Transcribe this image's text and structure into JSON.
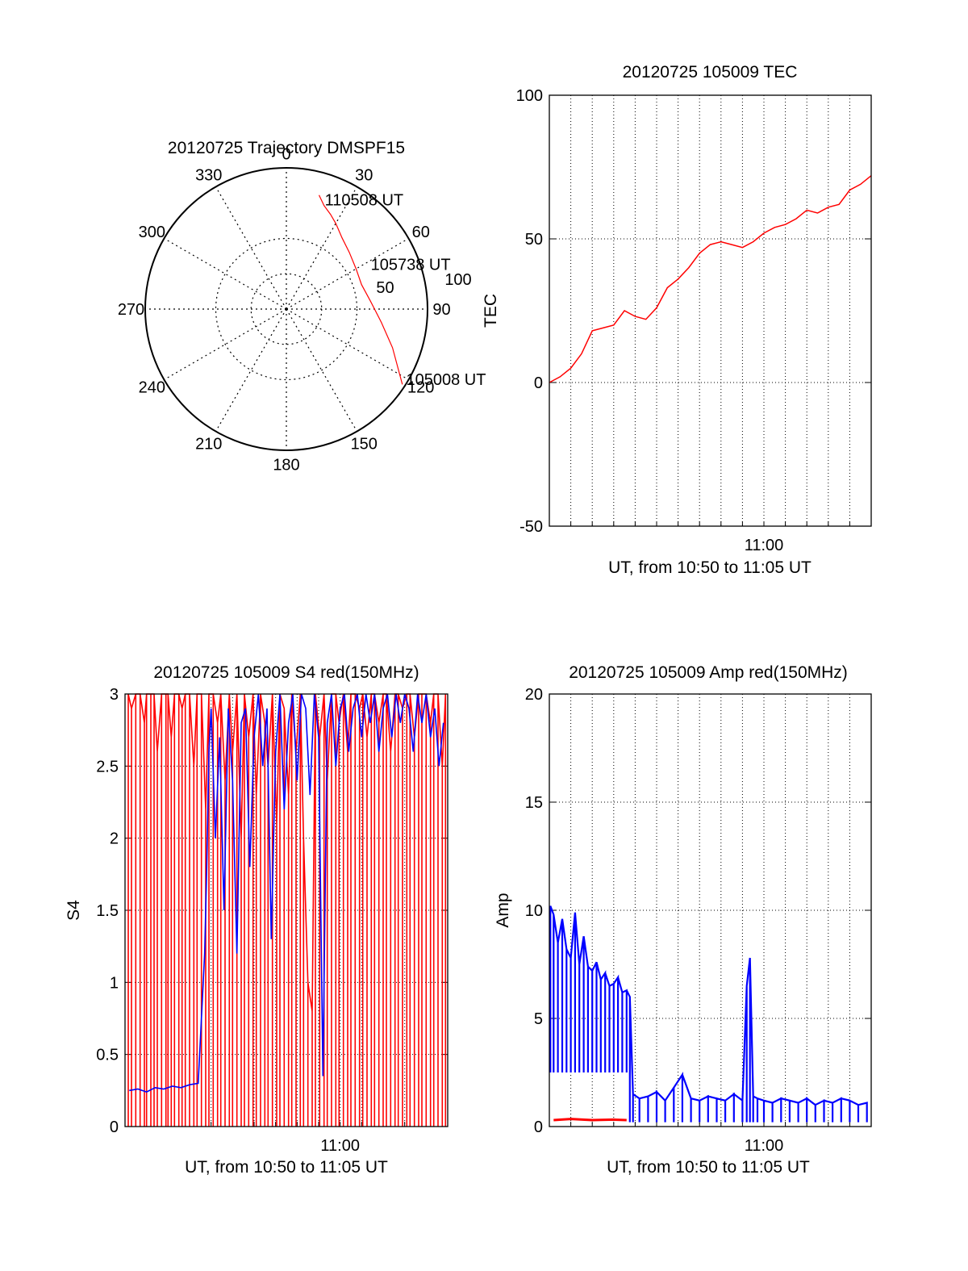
{
  "colors": {
    "red": "#ff0000",
    "blue": "#0000ff",
    "axis": "#000000",
    "grid": "#000000"
  },
  "chart_data": [
    {
      "id": "trajectory",
      "type": "polar",
      "title": "20120725 Trajectory DMSPF15",
      "azimuth_ticks": [
        "0",
        "30",
        "60",
        "90",
        "120",
        "150",
        "180",
        "210",
        "240",
        "270",
        "300",
        "330"
      ],
      "radius_range": [
        0,
        100
      ],
      "radius_labels": [
        "50",
        "100"
      ],
      "track": {
        "color": "#ff0000",
        "points": [
          [
            123,
            98
          ],
          [
            110,
            80
          ],
          [
            98,
            68
          ],
          [
            85,
            60
          ],
          [
            72,
            56
          ],
          [
            60,
            57
          ],
          [
            48,
            60
          ],
          [
            38,
            64
          ],
          [
            30,
            70
          ],
          [
            25,
            74
          ],
          [
            20,
            78
          ],
          [
            16,
            84
          ]
        ]
      },
      "annotations": [
        {
          "text": "110508 UT",
          "azimuth": 20,
          "radius": 83
        },
        {
          "text": "105738 UT",
          "azimuth": 62,
          "radius": 69
        },
        {
          "text": "105008 UT",
          "azimuth": 120,
          "radius": 98
        }
      ]
    },
    {
      "id": "tec",
      "type": "line",
      "title": "20120725 105009 TEC",
      "ylabel": "TEC",
      "xlabel": "UT, from 10:50 to 11:05 UT",
      "x_tick_labels": [
        "11:00"
      ],
      "y_tick_labels": [
        "-50",
        "0",
        "50",
        "100"
      ],
      "xlim": [
        0,
        15
      ],
      "ylim": [
        -50,
        100
      ],
      "series": [
        {
          "color": "#ff0000",
          "x": [
            0,
            0.5,
            1,
            1.5,
            2,
            2.5,
            3,
            3.5,
            4,
            4.5,
            5,
            5.5,
            6,
            6.5,
            7,
            7.5,
            8,
            8.5,
            9,
            9.5,
            10,
            10.5,
            11,
            11.5,
            12,
            12.5,
            13,
            13.5,
            14,
            14.5,
            15
          ],
          "y": [
            0,
            2,
            5,
            10,
            18,
            19,
            20,
            25,
            23,
            22,
            26,
            33,
            36,
            40,
            45,
            48,
            49,
            48,
            47,
            49,
            52,
            54,
            55,
            57,
            60,
            59,
            61,
            62,
            67,
            69,
            72
          ]
        }
      ]
    },
    {
      "id": "s4",
      "type": "line",
      "title": "20120725 105009 S4 red(150MHz)",
      "ylabel": "S4",
      "xlabel": "UT, from 10:50 to 11:05 UT",
      "x_tick_labels": [
        "11:00"
      ],
      "y_tick_labels": [
        "0",
        "0.5",
        "1",
        "1.5",
        "2",
        "2.5",
        "3"
      ],
      "xlim": [
        0,
        15
      ],
      "ylim": [
        0,
        3
      ],
      "series": [
        {
          "color": "#ff0000",
          "x": [
            0.15,
            0.3,
            0.5,
            0.7,
            0.9,
            1.0,
            1.2,
            1.35,
            1.5,
            1.7,
            1.9,
            2.0,
            2.15,
            2.3,
            2.5,
            2.65,
            2.8,
            3.0,
            3.2,
            3.35,
            3.55,
            3.75,
            3.9,
            4.1,
            4.3,
            4.45,
            4.65,
            4.85,
            5.0,
            5.2,
            5.4,
            5.55,
            5.75,
            5.95,
            6.1,
            6.3,
            6.5,
            6.65,
            6.85,
            7.05,
            7.2,
            7.4,
            7.6,
            7.75,
            7.95,
            8.15,
            8.3,
            8.5,
            8.7,
            8.85,
            9.05,
            9.25,
            9.4,
            9.6,
            9.8,
            9.95,
            10.15,
            10.35,
            10.5,
            10.7,
            10.9,
            11.05,
            11.25,
            11.45,
            11.6,
            11.8,
            12.0,
            12.15,
            12.35,
            12.55,
            12.7,
            12.9,
            13.1,
            13.25,
            13.45,
            13.65,
            13.8,
            14.0,
            14.2,
            14.35,
            14.55,
            14.75,
            14.9
          ],
          "y": [
            3,
            2.9,
            3,
            3,
            2.8,
            3,
            3,
            3,
            2.6,
            3,
            3,
            3,
            2.7,
            3,
            3,
            2.9,
            3,
            3,
            2.5,
            3,
            3,
            2.2,
            3,
            3,
            2.8,
            3,
            2.4,
            3,
            2.6,
            3,
            2.0,
            3,
            2.7,
            3,
            2.3,
            3,
            2.8,
            2.5,
            3,
            2.1,
            3,
            2.9,
            2.3,
            3,
            2.6,
            3,
            2.0,
            1.0,
            0.8,
            3,
            2.7,
            3,
            2.4,
            3,
            3,
            2.8,
            3,
            2.6,
            3,
            3,
            2.9,
            3,
            2.7,
            3,
            3,
            2.8,
            3,
            3,
            2.6,
            3,
            3,
            2.9,
            3,
            3,
            2.7,
            3,
            3,
            3,
            2.8,
            3,
            3,
            2.5,
            3
          ]
        },
        {
          "color": "#0000ff",
          "x": [
            0.2,
            0.6,
            1.0,
            1.4,
            1.8,
            2.2,
            2.6,
            3.0,
            3.4,
            3.7,
            3.8,
            3.9,
            4.0,
            4.2,
            4.4,
            4.6,
            4.8,
            5.0,
            5.2,
            5.4,
            5.6,
            5.8,
            6.0,
            6.2,
            6.4,
            6.6,
            6.8,
            7.0,
            7.2,
            7.4,
            7.6,
            7.8,
            8.0,
            8.2,
            8.4,
            8.6,
            8.8,
            9.0,
            9.2,
            9.4,
            9.6,
            9.8,
            10.0,
            10.2,
            10.4,
            10.6,
            10.8,
            11.0,
            11.2,
            11.4,
            11.6,
            11.8,
            12.0,
            12.2,
            12.4,
            12.6,
            12.8,
            13.0,
            13.2,
            13.4,
            13.6,
            13.8,
            14.0,
            14.2,
            14.4,
            14.6,
            14.8
          ],
          "y": [
            0.25,
            0.26,
            0.24,
            0.27,
            0.26,
            0.28,
            0.27,
            0.29,
            0.3,
            1.2,
            1.8,
            2.6,
            2.9,
            2.0,
            2.7,
            1.5,
            2.9,
            2.4,
            1.2,
            2.8,
            2.9,
            1.8,
            2.7,
            3,
            2.5,
            2.9,
            1.3,
            2.6,
            3,
            2.2,
            2.8,
            3,
            2.4,
            3,
            2.9,
            2.3,
            3,
            2.7,
            0.35,
            2.8,
            3,
            2.5,
            2.9,
            3,
            2.6,
            2.9,
            3,
            2.7,
            3,
            2.8,
            3,
            2.6,
            2.9,
            3,
            2.7,
            3,
            2.8,
            3,
            2.9,
            2.6,
            3,
            2.8,
            3,
            2.7,
            2.9,
            2.5,
            2.8
          ]
        }
      ]
    },
    {
      "id": "amp",
      "type": "line",
      "title": "20120725 105009 Amp red(150MHz)",
      "ylabel": "Amp",
      "xlabel": "UT, from 10:50 to 11:05 UT",
      "x_tick_labels": [
        "11:00"
      ],
      "y_tick_labels": [
        "0",
        "5",
        "10",
        "15",
        "20"
      ],
      "xlim": [
        0,
        15
      ],
      "ylim": [
        0,
        20
      ],
      "series": [
        {
          "color": "#0000ff",
          "x": [
            0.05,
            0.2,
            0.4,
            0.6,
            0.8,
            1.0,
            1.2,
            1.4,
            1.6,
            1.8,
            2.0,
            2.2,
            2.4,
            2.6,
            2.8,
            3.0,
            3.2,
            3.4,
            3.6,
            3.75,
            3.9,
            4.2,
            4.6,
            5.0,
            5.4,
            5.8,
            6.2,
            6.6,
            7.0,
            7.4,
            7.8,
            8.2,
            8.6,
            9.0,
            9.2,
            9.35,
            9.5,
            9.7,
            10.0,
            10.4,
            10.8,
            11.2,
            11.6,
            12.0,
            12.4,
            12.8,
            13.2,
            13.6,
            14.0,
            14.4,
            14.8
          ],
          "y": [
            10.2,
            9.8,
            8.5,
            9.6,
            8.2,
            7.8,
            9.9,
            7.5,
            8.8,
            7.4,
            7.2,
            7.6,
            6.8,
            7.1,
            6.5,
            6.6,
            6.9,
            6.2,
            6.3,
            6.0,
            1.5,
            1.3,
            1.4,
            1.6,
            1.2,
            1.8,
            2.4,
            1.3,
            1.2,
            1.4,
            1.3,
            1.2,
            1.5,
            1.2,
            6.5,
            7.8,
            1.4,
            1.3,
            1.2,
            1.1,
            1.3,
            1.2,
            1.1,
            1.3,
            1.0,
            1.2,
            1.1,
            1.3,
            1.2,
            1.0,
            1.1
          ]
        },
        {
          "color": "#ff0000",
          "x": [
            0.2,
            1.0,
            2.0,
            3.0,
            3.6
          ],
          "y": [
            0.3,
            0.35,
            0.3,
            0.32,
            0.3
          ]
        }
      ]
    }
  ]
}
